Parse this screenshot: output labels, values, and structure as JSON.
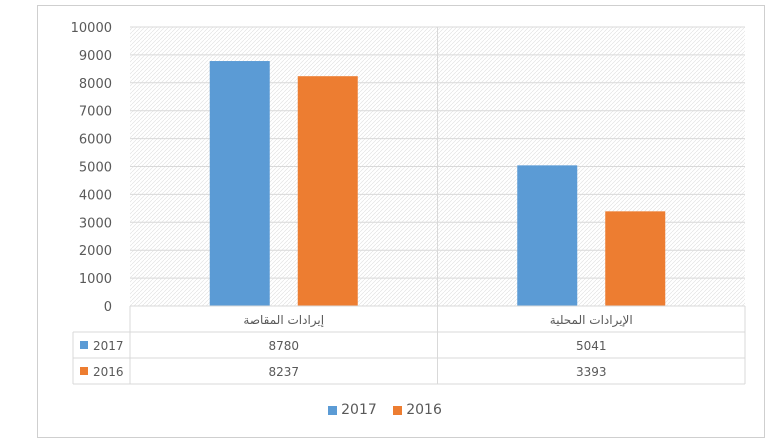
{
  "chart_data": {
    "type": "bar",
    "categories": [
      "إيرادات المقاصة",
      "الإيرادات المحلية"
    ],
    "series": [
      {
        "name": "2017",
        "values": [
          8780,
          5041
        ],
        "color": "#5b9bd5"
      },
      {
        "name": "2016",
        "values": [
          8237,
          3393
        ],
        "color": "#ed7d31"
      }
    ],
    "ylim": [
      0,
      10000
    ],
    "yticks": [
      "0",
      "1000",
      "2000",
      "3000",
      "4000",
      "5000",
      "6000",
      "7000",
      "8000",
      "9000",
      "10000"
    ],
    "data_table": true,
    "legend_position": "bottom",
    "grid": true,
    "title": "",
    "xlabel": "",
    "ylabel": ""
  }
}
